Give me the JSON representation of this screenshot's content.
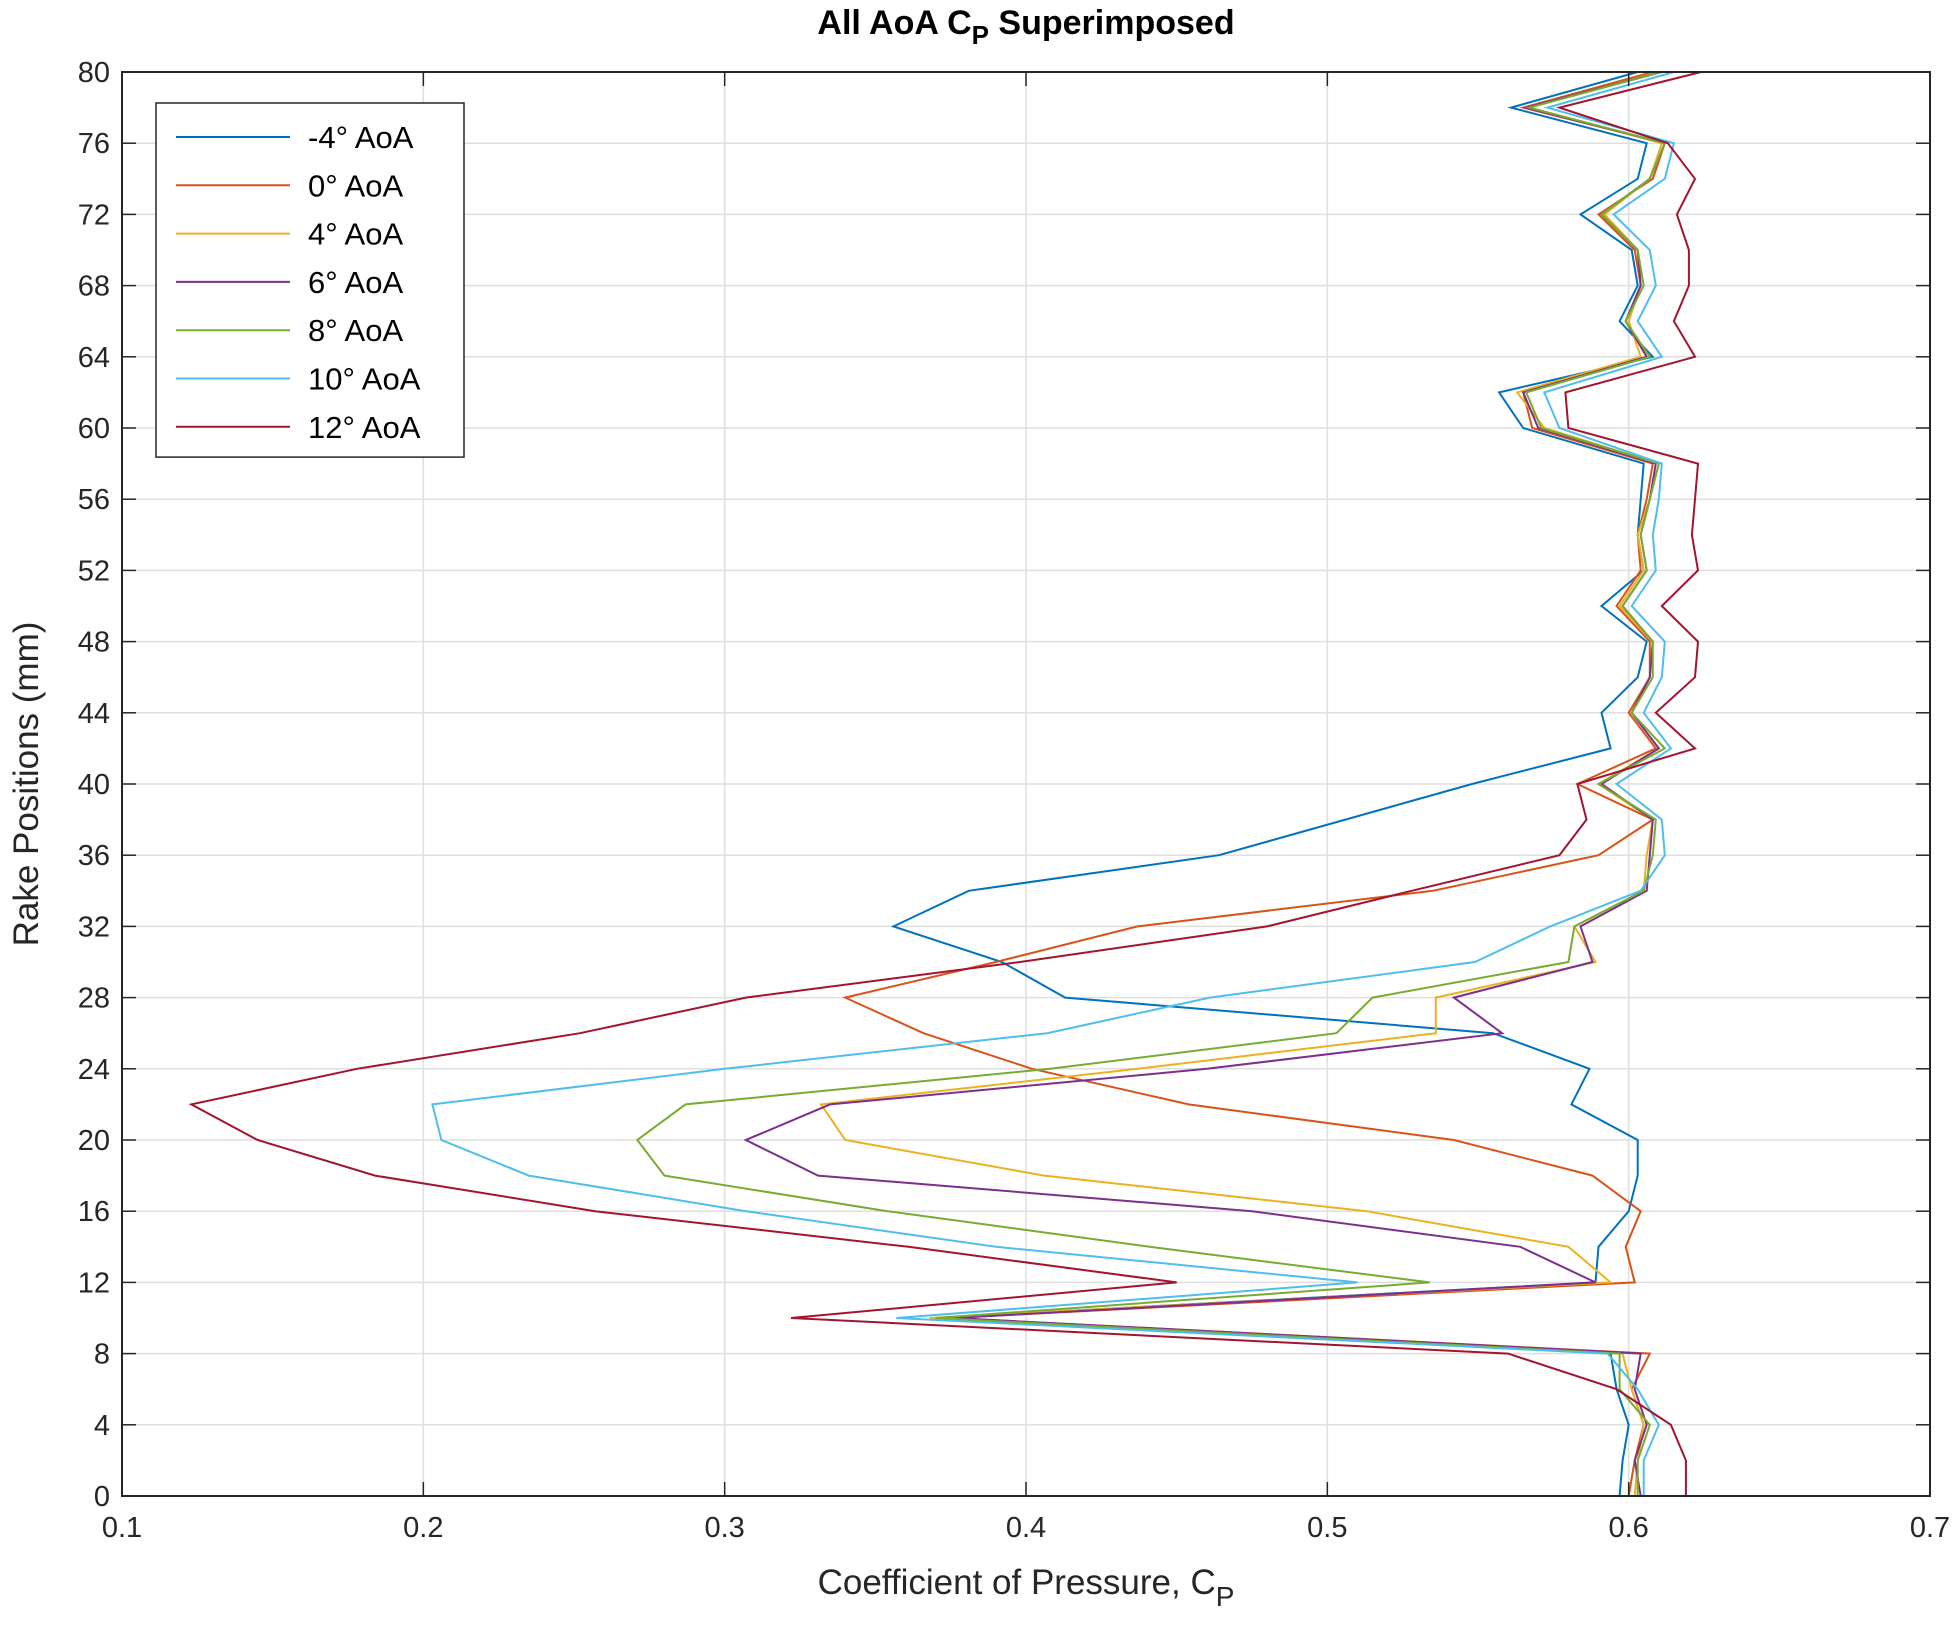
{
  "chart_data": {
    "type": "line",
    "title": "All AoA C",
    "title_sub": "P",
    "title_suffix": " Superimposed",
    "xlabel": "Coefficient of Pressure, C",
    "xlabel_sub": "P",
    "ylabel": "Rake Positions (mm)",
    "xlim": [
      0.1,
      0.7
    ],
    "ylim": [
      0,
      80
    ],
    "xticks": [
      "0.1",
      "0.2",
      "0.3",
      "0.4",
      "0.5",
      "0.6",
      "0.7"
    ],
    "yticks": [
      "0",
      "4",
      "8",
      "12",
      "16",
      "20",
      "24",
      "28",
      "32",
      "36",
      "40",
      "44",
      "48",
      "52",
      "56",
      "60",
      "64",
      "68",
      "72",
      "76",
      "80"
    ],
    "grid": true,
    "legend_position": "top-left",
    "y": [
      0,
      2,
      4,
      6,
      8,
      10,
      12,
      14,
      16,
      18,
      20,
      22,
      24,
      26,
      28,
      30,
      32,
      34,
      36,
      38,
      40,
      42,
      44,
      46,
      48,
      50,
      52,
      54,
      56,
      58,
      60,
      62,
      64,
      66,
      68,
      70,
      72,
      74,
      76,
      78,
      80
    ],
    "series": [
      {
        "name": "-4° AoA",
        "color": "#0072BD",
        "values": [
          0.597,
          0.598,
          0.6,
          0.596,
          0.594,
          0.37,
          0.589,
          0.59,
          0.6,
          0.603,
          0.603,
          0.581,
          0.587,
          0.555,
          0.413,
          0.392,
          0.356,
          0.381,
          0.464,
          0.506,
          0.548,
          0.594,
          0.591,
          0.603,
          0.606,
          0.591,
          0.605,
          0.603,
          0.604,
          0.605,
          0.565,
          0.557,
          0.608,
          0.597,
          0.603,
          0.601,
          0.584,
          0.603,
          0.606,
          0.561,
          0.603
        ]
      },
      {
        "name": "0° AoA",
        "color": "#D95319",
        "values": [
          0.6,
          0.602,
          0.605,
          0.601,
          0.607,
          0.375,
          0.602,
          0.599,
          0.604,
          0.588,
          0.542,
          0.454,
          0.402,
          0.366,
          0.34,
          0.39,
          0.437,
          0.535,
          0.59,
          0.608,
          0.583,
          0.609,
          0.6,
          0.607,
          0.607,
          0.596,
          0.604,
          0.603,
          0.606,
          0.608,
          0.568,
          0.565,
          0.606,
          0.599,
          0.604,
          0.602,
          0.59,
          0.608,
          0.612,
          0.565,
          0.608
        ]
      },
      {
        "name": "4° AoA",
        "color": "#EDB120",
        "values": [
          0.602,
          0.603,
          0.605,
          0.601,
          0.598,
          0.368,
          0.594,
          0.58,
          0.513,
          0.406,
          0.34,
          0.332,
          0.437,
          0.536,
          0.536,
          0.589,
          0.582,
          0.605,
          0.606,
          0.608,
          0.59,
          0.61,
          0.601,
          0.607,
          0.608,
          0.597,
          0.605,
          0.603,
          0.607,
          0.61,
          0.572,
          0.563,
          0.604,
          0.6,
          0.604,
          0.603,
          0.592,
          0.607,
          0.611,
          0.567,
          0.61
        ]
      },
      {
        "name": "6° AoA",
        "color": "#7E2F8E",
        "values": [
          0.604,
          0.602,
          0.606,
          0.602,
          0.604,
          0.376,
          0.589,
          0.564,
          0.475,
          0.331,
          0.307,
          0.335,
          0.46,
          0.558,
          0.542,
          0.588,
          0.584,
          0.606,
          0.607,
          0.608,
          0.591,
          0.61,
          0.601,
          0.607,
          0.608,
          0.598,
          0.606,
          0.604,
          0.607,
          0.609,
          0.57,
          0.565,
          0.606,
          0.599,
          0.604,
          0.603,
          0.591,
          0.607,
          0.612,
          0.566,
          0.611
        ]
      },
      {
        "name": "8° AoA",
        "color": "#77AC30",
        "values": [
          0.603,
          0.603,
          0.607,
          0.597,
          0.597,
          0.37,
          0.534,
          0.441,
          0.354,
          0.28,
          0.271,
          0.287,
          0.408,
          0.503,
          0.515,
          0.58,
          0.582,
          0.605,
          0.608,
          0.609,
          0.59,
          0.612,
          0.601,
          0.608,
          0.608,
          0.598,
          0.606,
          0.604,
          0.607,
          0.61,
          0.571,
          0.566,
          0.607,
          0.599,
          0.605,
          0.603,
          0.591,
          0.607,
          0.612,
          0.567,
          0.611
        ]
      },
      {
        "name": "10° AoA",
        "color": "#4DBEEE",
        "values": [
          0.605,
          0.605,
          0.61,
          0.603,
          0.593,
          0.357,
          0.51,
          0.39,
          0.307,
          0.235,
          0.206,
          0.203,
          0.3,
          0.407,
          0.461,
          0.549,
          0.574,
          0.604,
          0.612,
          0.611,
          0.596,
          0.614,
          0.605,
          0.611,
          0.612,
          0.601,
          0.609,
          0.608,
          0.61,
          0.611,
          0.577,
          0.572,
          0.611,
          0.603,
          0.609,
          0.607,
          0.595,
          0.612,
          0.615,
          0.573,
          0.615
        ]
      },
      {
        "name": "12° AoA",
        "color": "#A2142F",
        "values": [
          0.619,
          0.619,
          0.614,
          0.596,
          0.56,
          0.322,
          0.45,
          0.361,
          0.257,
          0.184,
          0.145,
          0.123,
          0.178,
          0.252,
          0.307,
          0.398,
          0.48,
          0.528,
          0.577,
          0.586,
          0.583,
          0.622,
          0.609,
          0.622,
          0.623,
          0.611,
          0.623,
          0.621,
          0.622,
          0.623,
          0.58,
          0.579,
          0.622,
          0.615,
          0.62,
          0.62,
          0.616,
          0.622,
          0.613,
          0.577,
          0.624
        ]
      }
    ]
  }
}
